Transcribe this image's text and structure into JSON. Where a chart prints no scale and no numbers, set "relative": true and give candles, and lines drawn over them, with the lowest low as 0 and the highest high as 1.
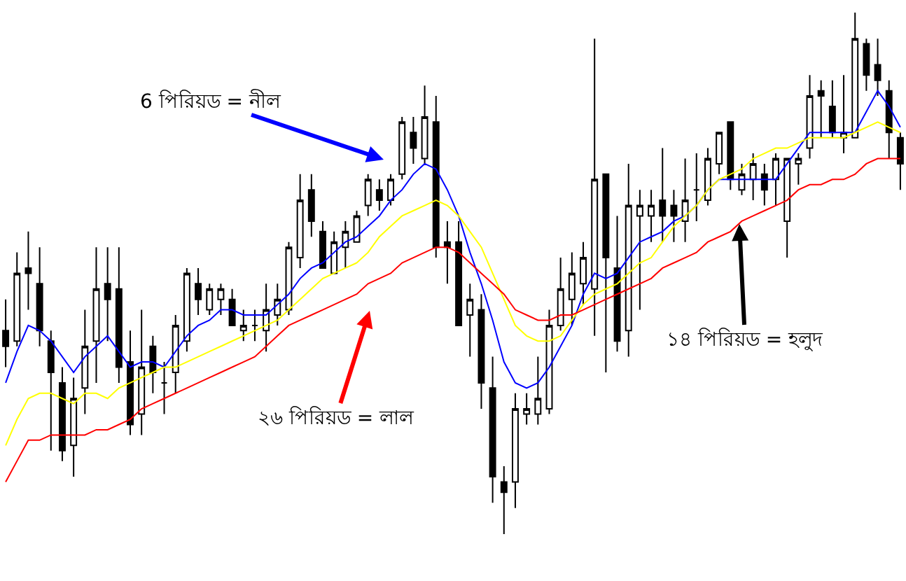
{
  "chart_data": {
    "type": "candlestick",
    "relative": true,
    "categories": [
      null,
      null,
      null,
      null,
      null,
      null,
      null,
      null,
      null,
      null,
      null,
      null,
      null,
      null,
      null,
      null,
      null,
      null,
      null,
      null,
      null,
      null,
      null,
      null,
      null,
      null,
      null,
      null,
      null,
      null,
      null,
      null,
      null,
      null,
      null,
      null,
      null,
      null,
      null,
      null,
      null,
      null,
      null,
      null,
      null,
      null,
      null,
      null,
      null,
      null,
      null,
      null,
      null,
      null,
      null,
      null,
      null,
      null,
      null,
      null,
      null,
      null,
      null,
      null,
      null,
      null,
      null,
      null,
      null,
      null,
      null,
      null,
      null,
      null,
      null,
      null,
      null,
      null,
      null,
      null
    ],
    "ohlc": [
      [
        0.39,
        0.45,
        0.32,
        0.36
      ],
      [
        0.37,
        0.54,
        0.36,
        0.5
      ],
      [
        0.51,
        0.58,
        0.43,
        0.5
      ],
      [
        0.48,
        0.55,
        0.36,
        0.39
      ],
      [
        0.37,
        0.39,
        0.16,
        0.31
      ],
      [
        0.29,
        0.32,
        0.14,
        0.16
      ],
      [
        0.17,
        0.3,
        0.11,
        0.26
      ],
      [
        0.28,
        0.43,
        0.23,
        0.36
      ],
      [
        0.37,
        0.55,
        0.29,
        0.47
      ],
      [
        0.48,
        0.55,
        0.37,
        0.45
      ],
      [
        0.47,
        0.55,
        0.29,
        0.32
      ],
      [
        0.33,
        0.39,
        0.19,
        0.21
      ],
      [
        0.23,
        0.43,
        0.19,
        0.32
      ],
      [
        0.36,
        0.38,
        0.27,
        0.31
      ],
      [
        0.29,
        0.33,
        0.23,
        0.29
      ],
      [
        0.31,
        0.42,
        0.27,
        0.4
      ],
      [
        0.37,
        0.51,
        0.35,
        0.5
      ],
      [
        0.48,
        0.51,
        0.42,
        0.45
      ],
      [
        0.43,
        0.48,
        0.42,
        0.47
      ],
      [
        0.45,
        0.48,
        0.42,
        0.47
      ],
      [
        0.45,
        0.47,
        0.4,
        0.4
      ],
      [
        0.39,
        0.43,
        0.37,
        0.4
      ],
      [
        0.4,
        0.43,
        0.37,
        0.4
      ],
      [
        0.39,
        0.48,
        0.35,
        0.43
      ],
      [
        0.42,
        0.48,
        0.4,
        0.45
      ],
      [
        0.43,
        0.56,
        0.42,
        0.55
      ],
      [
        0.53,
        0.69,
        0.51,
        0.64
      ],
      [
        0.66,
        0.69,
        0.57,
        0.6
      ],
      [
        0.58,
        0.6,
        0.51,
        0.51
      ],
      [
        0.5,
        0.58,
        0.5,
        0.56
      ],
      [
        0.55,
        0.6,
        0.51,
        0.58
      ],
      [
        0.56,
        0.62,
        0.56,
        0.61
      ],
      [
        0.63,
        0.69,
        0.61,
        0.68
      ],
      [
        0.66,
        0.68,
        0.62,
        0.64
      ],
      [
        0.64,
        0.69,
        0.63,
        0.68
      ],
      [
        0.69,
        0.8,
        0.68,
        0.79
      ],
      [
        0.77,
        0.8,
        0.71,
        0.74
      ],
      [
        0.72,
        0.86,
        0.71,
        0.8
      ],
      [
        0.79,
        0.84,
        0.53,
        0.55
      ],
      [
        0.56,
        0.6,
        0.48,
        0.55
      ],
      [
        0.56,
        0.6,
        0.4,
        0.4
      ],
      [
        0.42,
        0.48,
        0.34,
        0.45
      ],
      [
        0.43,
        0.46,
        0.24,
        0.29
      ],
      [
        0.28,
        0.34,
        0.06,
        0.11
      ],
      [
        0.1,
        0.13,
        0.0,
        0.08
      ],
      [
        0.1,
        0.27,
        0.05,
        0.24
      ],
      [
        0.23,
        0.27,
        0.21,
        0.24
      ],
      [
        0.23,
        0.34,
        0.21,
        0.26
      ],
      [
        0.24,
        0.43,
        0.23,
        0.4
      ],
      [
        0.4,
        0.53,
        0.39,
        0.47
      ],
      [
        0.45,
        0.54,
        0.4,
        0.5
      ],
      [
        0.48,
        0.56,
        0.44,
        0.53
      ],
      [
        0.47,
        0.95,
        0.38,
        0.68
      ],
      [
        0.69,
        0.69,
        0.31,
        0.53
      ],
      [
        0.51,
        0.61,
        0.35,
        0.37
      ],
      [
        0.39,
        0.71,
        0.34,
        0.63
      ],
      [
        0.61,
        0.66,
        0.43,
        0.63
      ],
      [
        0.61,
        0.66,
        0.56,
        0.63
      ],
      [
        0.64,
        0.74,
        0.56,
        0.61
      ],
      [
        0.63,
        0.66,
        0.56,
        0.61
      ],
      [
        0.6,
        0.72,
        0.56,
        0.64
      ],
      [
        0.66,
        0.73,
        0.6,
        0.66
      ],
      [
        0.64,
        0.74,
        0.63,
        0.72
      ],
      [
        0.71,
        0.77,
        0.69,
        0.77
      ],
      [
        0.79,
        0.79,
        0.66,
        0.68
      ],
      [
        0.66,
        0.71,
        0.65,
        0.69
      ],
      [
        0.68,
        0.73,
        0.64,
        0.71
      ],
      [
        0.69,
        0.71,
        0.63,
        0.66
      ],
      [
        0.68,
        0.73,
        0.63,
        0.72
      ],
      [
        0.6,
        0.72,
        0.53,
        0.72
      ],
      [
        0.71,
        0.73,
        0.67,
        0.72
      ],
      [
        0.74,
        0.88,
        0.72,
        0.84
      ],
      [
        0.85,
        0.87,
        0.76,
        0.84
      ],
      [
        0.82,
        0.87,
        0.76,
        0.77
      ],
      [
        0.76,
        0.88,
        0.73,
        0.77
      ],
      [
        0.76,
        1.0,
        0.76,
        0.95
      ],
      [
        0.94,
        0.95,
        0.85,
        0.88
      ],
      [
        0.9,
        0.95,
        0.84,
        0.87
      ],
      [
        0.85,
        0.87,
        0.72,
        0.77
      ],
      [
        0.76,
        0.77,
        0.66,
        0.71
      ]
    ],
    "series": [
      {
        "type": "line",
        "color": "#0000ff",
        "values": [
          0.29,
          0.35,
          0.4,
          0.39,
          0.37,
          0.34,
          0.31,
          0.34,
          0.36,
          0.38,
          0.35,
          0.32,
          0.33,
          0.33,
          0.32,
          0.35,
          0.38,
          0.4,
          0.41,
          0.43,
          0.43,
          0.42,
          0.42,
          0.42,
          0.44,
          0.46,
          0.49,
          0.51,
          0.52,
          0.54,
          0.56,
          0.57,
          0.59,
          0.61,
          0.64,
          0.66,
          0.69,
          0.71,
          0.7,
          0.66,
          0.61,
          0.54,
          0.48,
          0.41,
          0.33,
          0.29,
          0.28,
          0.29,
          0.32,
          0.36,
          0.4,
          0.46,
          0.5,
          0.49,
          0.5,
          0.53,
          0.56,
          0.57,
          0.58,
          0.6,
          0.61,
          0.63,
          0.66,
          0.68,
          0.68,
          0.68,
          0.68,
          0.68,
          0.68,
          0.71,
          0.74,
          0.77,
          0.77,
          0.77,
          0.77,
          0.77,
          0.81,
          0.85,
          0.82,
          0.78
        ]
      },
      {
        "type": "line",
        "color": "#ffff00",
        "values": [
          0.17,
          0.22,
          0.26,
          0.27,
          0.27,
          0.26,
          0.25,
          0.27,
          0.27,
          0.26,
          0.28,
          0.29,
          0.3,
          0.31,
          0.32,
          0.32,
          0.33,
          0.34,
          0.35,
          0.36,
          0.37,
          0.38,
          0.39,
          0.4,
          0.41,
          0.43,
          0.45,
          0.47,
          0.49,
          0.5,
          0.51,
          0.52,
          0.54,
          0.57,
          0.59,
          0.61,
          0.62,
          0.63,
          0.64,
          0.63,
          0.61,
          0.58,
          0.55,
          0.5,
          0.45,
          0.4,
          0.38,
          0.37,
          0.37,
          0.38,
          0.41,
          0.44,
          0.46,
          0.47,
          0.48,
          0.5,
          0.52,
          0.53,
          0.56,
          0.59,
          0.61,
          0.63,
          0.66,
          0.68,
          0.69,
          0.7,
          0.72,
          0.73,
          0.74,
          0.74,
          0.75,
          0.76,
          0.76,
          0.76,
          0.76,
          0.77,
          0.78,
          0.79,
          0.78,
          0.77
        ]
      },
      {
        "type": "line",
        "color": "#ff0000",
        "values": [
          0.1,
          0.14,
          0.18,
          0.18,
          0.19,
          0.19,
          0.19,
          0.19,
          0.2,
          0.2,
          0.21,
          0.22,
          0.24,
          0.25,
          0.26,
          0.27,
          0.28,
          0.29,
          0.3,
          0.31,
          0.32,
          0.33,
          0.34,
          0.36,
          0.38,
          0.4,
          0.41,
          0.42,
          0.43,
          0.44,
          0.45,
          0.46,
          0.48,
          0.49,
          0.5,
          0.52,
          0.53,
          0.54,
          0.55,
          0.55,
          0.54,
          0.52,
          0.5,
          0.48,
          0.46,
          0.43,
          0.42,
          0.41,
          0.41,
          0.42,
          0.42,
          0.43,
          0.44,
          0.45,
          0.46,
          0.47,
          0.48,
          0.49,
          0.51,
          0.52,
          0.53,
          0.54,
          0.56,
          0.57,
          0.58,
          0.6,
          0.61,
          0.62,
          0.63,
          0.64,
          0.66,
          0.67,
          0.67,
          0.68,
          0.68,
          0.69,
          0.71,
          0.72,
          0.72,
          0.72
        ]
      }
    ],
    "annotations": [
      "6 পিরিয়ড = নীল",
      "২৬ পিরিয়ড = লাল",
      "১৪ পিরিয়ড = হলুদ"
    ]
  }
}
